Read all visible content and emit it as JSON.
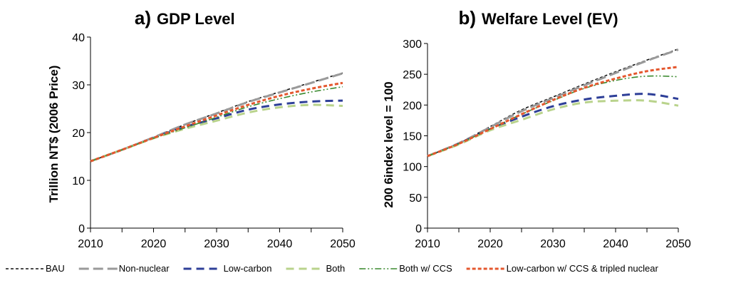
{
  "figure": {
    "legend": [
      {
        "name": "BAU",
        "color": "#111111",
        "dash": "4,3",
        "width": 1.6
      },
      {
        "name": "Non-nuclear",
        "color": "#9a9a9a",
        "dash": "14,6",
        "width": 3
      },
      {
        "name": "Low-carbon",
        "color": "#2e3f98",
        "dash": "11,7",
        "width": 3
      },
      {
        "name": "Both",
        "color": "#b9d38c",
        "dash": "11,7",
        "width": 3
      },
      {
        "name": "Both w/ CCS",
        "color": "#3a8a2e",
        "dash": "9,3,2,3,2,3",
        "width": 1.6
      },
      {
        "name": "Low-carbon w/ CCS & tripled nuclear",
        "color": "#e4572e",
        "dash": "5,3",
        "width": 3
      }
    ]
  },
  "chart_data": [
    {
      "type": "line",
      "title_letter": "a)",
      "title": "GDP Level",
      "xlabel": "",
      "ylabel": "Trillion NT$ (2006 Price)",
      "xlim": [
        2010,
        2050
      ],
      "ylim": [
        0,
        40
      ],
      "xticks": [
        2010,
        2020,
        2030,
        2040,
        2050
      ],
      "yticks": [
        0,
        10,
        20,
        30,
        40
      ],
      "grid": false,
      "x": [
        2010,
        2015,
        2020,
        2025,
        2030,
        2035,
        2040,
        2045,
        2050
      ],
      "series": [
        {
          "name": "BAU",
          "values": [
            14.0,
            16.4,
            19.0,
            21.7,
            24.1,
            26.5,
            28.5,
            30.5,
            32.5
          ]
        },
        {
          "name": "Non-nuclear",
          "values": [
            14.0,
            16.4,
            19.0,
            21.7,
            24.0,
            26.4,
            28.4,
            30.4,
            32.4
          ]
        },
        {
          "name": "Low-carbon",
          "values": [
            14.0,
            16.4,
            18.9,
            21.2,
            23.0,
            24.8,
            25.9,
            26.5,
            26.7
          ]
        },
        {
          "name": "Both",
          "values": [
            14.0,
            16.4,
            18.8,
            20.8,
            22.5,
            24.2,
            25.3,
            25.8,
            25.6
          ]
        },
        {
          "name": "Both w/ CCS",
          "values": [
            14.0,
            16.4,
            18.8,
            21.0,
            23.2,
            25.4,
            27.1,
            28.5,
            29.6
          ]
        },
        {
          "name": "Low-carbon w/ CCS & tripled nuclear",
          "values": [
            14.0,
            16.4,
            18.9,
            21.3,
            23.6,
            25.8,
            27.7,
            29.2,
            30.4
          ]
        }
      ]
    },
    {
      "type": "line",
      "title_letter": "b)",
      "title": "Welfare Level (EV)",
      "xlabel": "",
      "ylabel": "200 6index level = 100",
      "xlim": [
        2010,
        2050
      ],
      "ylim": [
        0,
        300
      ],
      "xticks": [
        2010,
        2020,
        2030,
        2040,
        2050
      ],
      "yticks": [
        0,
        50,
        100,
        150,
        200,
        250,
        300
      ],
      "grid": false,
      "x": [
        2010,
        2015,
        2020,
        2025,
        2030,
        2035,
        2040,
        2045,
        2050
      ],
      "series": [
        {
          "name": "BAU",
          "values": [
            117,
            138,
            165,
            192,
            213,
            234,
            254,
            273,
            291
          ]
        },
        {
          "name": "Non-nuclear",
          "values": [
            117,
            138,
            164,
            190,
            211,
            232,
            252,
            272,
            290
          ]
        },
        {
          "name": "Low-carbon",
          "values": [
            117,
            137,
            161,
            181,
            198,
            209,
            215,
            218,
            210
          ]
        },
        {
          "name": "Both",
          "values": [
            117,
            136,
            159,
            176,
            193,
            204,
            207,
            207,
            199
          ]
        },
        {
          "name": "Both w/ CCS",
          "values": [
            117,
            137,
            161,
            185,
            207,
            227,
            240,
            247,
            246
          ]
        },
        {
          "name": "Low-carbon w/ CCS & tripled nuclear",
          "values": [
            117,
            137,
            161,
            185,
            208,
            228,
            243,
            255,
            262
          ]
        }
      ]
    }
  ]
}
